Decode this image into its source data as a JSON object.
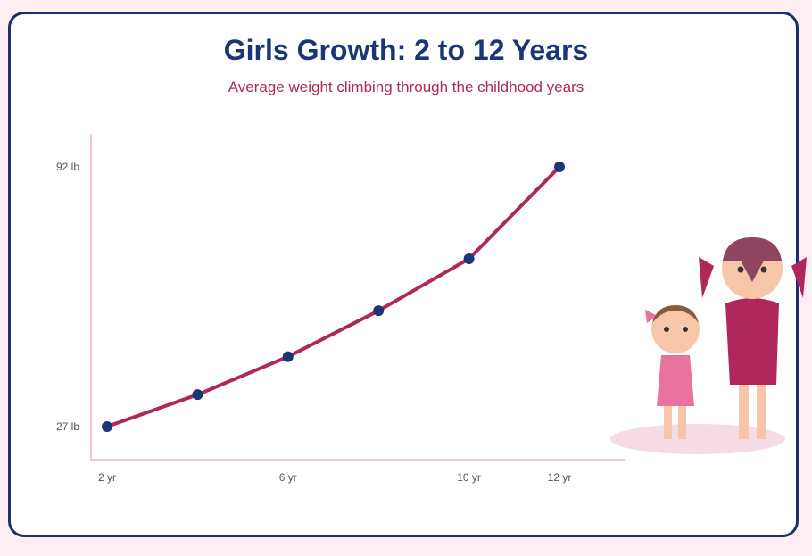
{
  "title": "Girls Growth: 2 to 12 Years",
  "subtitle": "Average weight climbing through the childhood years",
  "colors": {
    "background": "#fdeef2",
    "card_border": "#1e2e6e",
    "title": "#1c3577",
    "subtitle": "#b0275c",
    "line": "#b0275c",
    "point": "#1c3577",
    "axis": "#f2c7d3"
  },
  "chart_data": {
    "type": "line",
    "title": "Girls Growth: 2 to 12 Years",
    "subtitle": "Average weight climbing through the childhood years",
    "xlabel": "",
    "ylabel": "",
    "x": [
      2,
      4,
      6,
      8,
      10,
      12
    ],
    "values": [
      27,
      35,
      44.5,
      56,
      69,
      92
    ],
    "x_ticks": [
      {
        "value": 2,
        "label": "2 yr"
      },
      {
        "value": 6,
        "label": "6 yr"
      },
      {
        "value": 10,
        "label": "10 yr"
      },
      {
        "value": 12,
        "label": "12 yr"
      }
    ],
    "y_ticks": [
      {
        "value": 27,
        "label": "27 lb"
      },
      {
        "value": 92,
        "label": "92 lb"
      }
    ],
    "xlim": [
      2,
      12
    ],
    "ylim": [
      27,
      92
    ],
    "grid": false,
    "legend": "none"
  },
  "illustration": {
    "description_icons": [
      "younger-girl-illustration",
      "older-girl-illustration"
    ]
  }
}
